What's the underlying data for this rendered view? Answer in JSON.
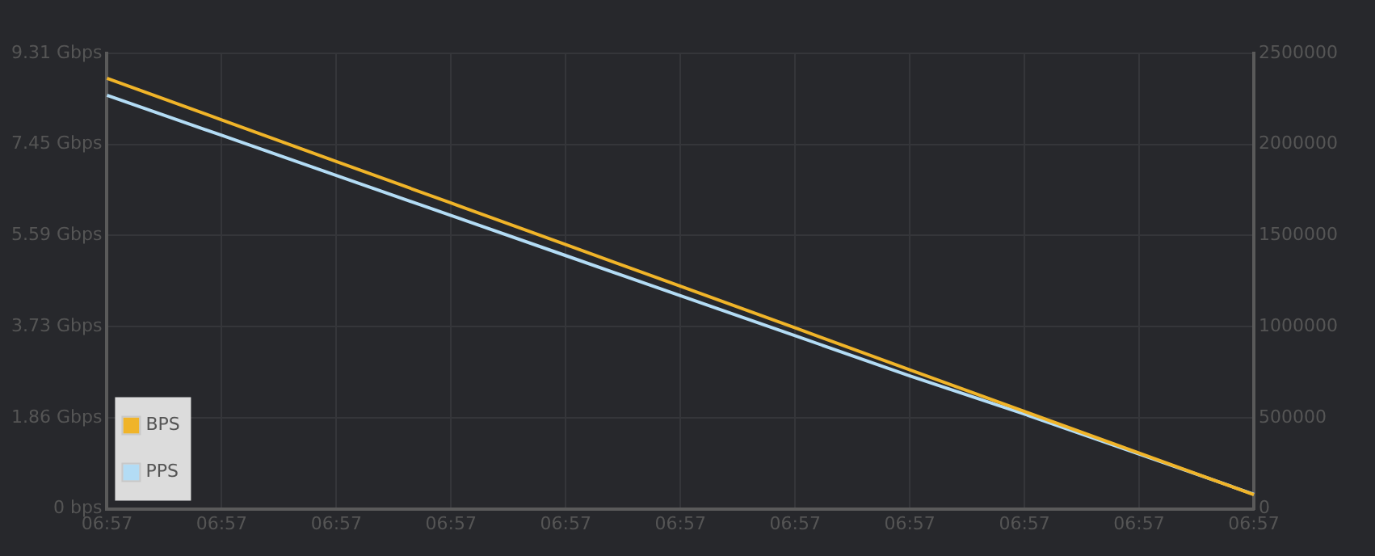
{
  "chart_data": {
    "type": "line",
    "categories": [
      "06:57",
      "06:57",
      "06:57",
      "06:57",
      "06:57",
      "06:57",
      "06:57",
      "06:57",
      "06:57",
      "06:57",
      "06:57"
    ],
    "series": [
      {
        "name": "BPS",
        "color": "#f0b429",
        "values": [
          8.8,
          7.95,
          7.1,
          6.25,
          5.4,
          4.55,
          3.7,
          2.84,
          1.99,
          1.14,
          0.29
        ]
      },
      {
        "name": "PPS",
        "color": "#b3dcf5",
        "axis": "y2",
        "values": [
          2270000,
          2050000,
          1830000,
          1610000,
          1390000,
          1170000,
          950000,
          730000,
          520000,
          300000,
          80000
        ]
      }
    ],
    "ylim": [
      0,
      9.31
    ],
    "yticks": [
      {
        "value": 0,
        "label": "0 bps"
      },
      {
        "value": 1.86,
        "label": "1.86 Gbps"
      },
      {
        "value": 3.73,
        "label": "3.73 Gbps"
      },
      {
        "value": 5.59,
        "label": "5.59 Gbps"
      },
      {
        "value": 7.45,
        "label": "7.45 Gbps"
      },
      {
        "value": 9.31,
        "label": "9.31 Gbps"
      }
    ],
    "y2lim": [
      0,
      2500000
    ],
    "y2ticks": [
      0,
      500000,
      1000000,
      1500000,
      2000000,
      2500000
    ],
    "grid": true,
    "legend": "bottom left",
    "marker": "none",
    "line_style": "solid"
  }
}
